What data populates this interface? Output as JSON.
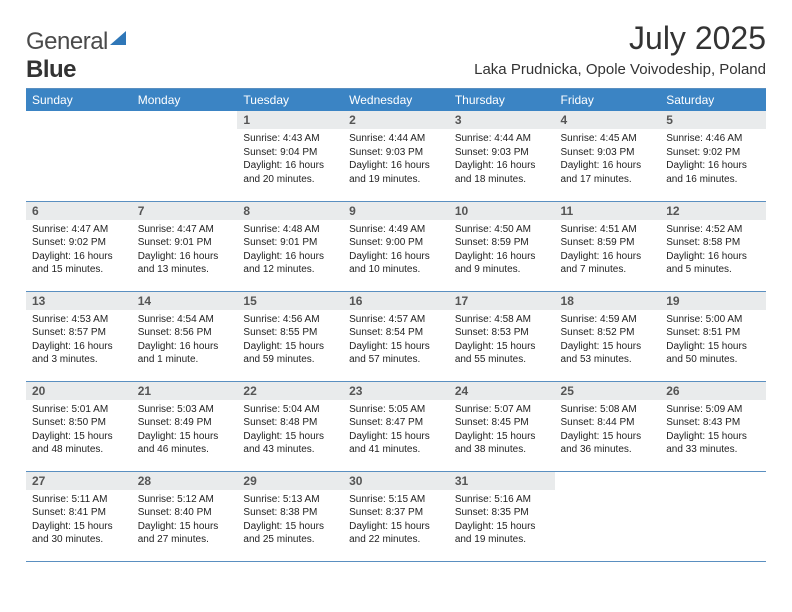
{
  "brand": {
    "part1": "General",
    "part2": "Blue"
  },
  "title": "July 2025",
  "location": "Laka Prudnicka, Opole Voivodeship, Poland",
  "colors": {
    "header_bg": "#3b84c4",
    "header_fg": "#ffffff",
    "daynum_bg": "#e9ebec",
    "rule": "#5a8fc0",
    "logo_accent": "#2f77b8"
  },
  "weekdays": [
    "Sunday",
    "Monday",
    "Tuesday",
    "Wednesday",
    "Thursday",
    "Friday",
    "Saturday"
  ],
  "weeks": [
    [
      {
        "n": "",
        "sr": "",
        "ss": "",
        "dl": ""
      },
      {
        "n": "",
        "sr": "",
        "ss": "",
        "dl": ""
      },
      {
        "n": "1",
        "sr": "Sunrise: 4:43 AM",
        "ss": "Sunset: 9:04 PM",
        "dl": "Daylight: 16 hours and 20 minutes."
      },
      {
        "n": "2",
        "sr": "Sunrise: 4:44 AM",
        "ss": "Sunset: 9:03 PM",
        "dl": "Daylight: 16 hours and 19 minutes."
      },
      {
        "n": "3",
        "sr": "Sunrise: 4:44 AM",
        "ss": "Sunset: 9:03 PM",
        "dl": "Daylight: 16 hours and 18 minutes."
      },
      {
        "n": "4",
        "sr": "Sunrise: 4:45 AM",
        "ss": "Sunset: 9:03 PM",
        "dl": "Daylight: 16 hours and 17 minutes."
      },
      {
        "n": "5",
        "sr": "Sunrise: 4:46 AM",
        "ss": "Sunset: 9:02 PM",
        "dl": "Daylight: 16 hours and 16 minutes."
      }
    ],
    [
      {
        "n": "6",
        "sr": "Sunrise: 4:47 AM",
        "ss": "Sunset: 9:02 PM",
        "dl": "Daylight: 16 hours and 15 minutes."
      },
      {
        "n": "7",
        "sr": "Sunrise: 4:47 AM",
        "ss": "Sunset: 9:01 PM",
        "dl": "Daylight: 16 hours and 13 minutes."
      },
      {
        "n": "8",
        "sr": "Sunrise: 4:48 AM",
        "ss": "Sunset: 9:01 PM",
        "dl": "Daylight: 16 hours and 12 minutes."
      },
      {
        "n": "9",
        "sr": "Sunrise: 4:49 AM",
        "ss": "Sunset: 9:00 PM",
        "dl": "Daylight: 16 hours and 10 minutes."
      },
      {
        "n": "10",
        "sr": "Sunrise: 4:50 AM",
        "ss": "Sunset: 8:59 PM",
        "dl": "Daylight: 16 hours and 9 minutes."
      },
      {
        "n": "11",
        "sr": "Sunrise: 4:51 AM",
        "ss": "Sunset: 8:59 PM",
        "dl": "Daylight: 16 hours and 7 minutes."
      },
      {
        "n": "12",
        "sr": "Sunrise: 4:52 AM",
        "ss": "Sunset: 8:58 PM",
        "dl": "Daylight: 16 hours and 5 minutes."
      }
    ],
    [
      {
        "n": "13",
        "sr": "Sunrise: 4:53 AM",
        "ss": "Sunset: 8:57 PM",
        "dl": "Daylight: 16 hours and 3 minutes."
      },
      {
        "n": "14",
        "sr": "Sunrise: 4:54 AM",
        "ss": "Sunset: 8:56 PM",
        "dl": "Daylight: 16 hours and 1 minute."
      },
      {
        "n": "15",
        "sr": "Sunrise: 4:56 AM",
        "ss": "Sunset: 8:55 PM",
        "dl": "Daylight: 15 hours and 59 minutes."
      },
      {
        "n": "16",
        "sr": "Sunrise: 4:57 AM",
        "ss": "Sunset: 8:54 PM",
        "dl": "Daylight: 15 hours and 57 minutes."
      },
      {
        "n": "17",
        "sr": "Sunrise: 4:58 AM",
        "ss": "Sunset: 8:53 PM",
        "dl": "Daylight: 15 hours and 55 minutes."
      },
      {
        "n": "18",
        "sr": "Sunrise: 4:59 AM",
        "ss": "Sunset: 8:52 PM",
        "dl": "Daylight: 15 hours and 53 minutes."
      },
      {
        "n": "19",
        "sr": "Sunrise: 5:00 AM",
        "ss": "Sunset: 8:51 PM",
        "dl": "Daylight: 15 hours and 50 minutes."
      }
    ],
    [
      {
        "n": "20",
        "sr": "Sunrise: 5:01 AM",
        "ss": "Sunset: 8:50 PM",
        "dl": "Daylight: 15 hours and 48 minutes."
      },
      {
        "n": "21",
        "sr": "Sunrise: 5:03 AM",
        "ss": "Sunset: 8:49 PM",
        "dl": "Daylight: 15 hours and 46 minutes."
      },
      {
        "n": "22",
        "sr": "Sunrise: 5:04 AM",
        "ss": "Sunset: 8:48 PM",
        "dl": "Daylight: 15 hours and 43 minutes."
      },
      {
        "n": "23",
        "sr": "Sunrise: 5:05 AM",
        "ss": "Sunset: 8:47 PM",
        "dl": "Daylight: 15 hours and 41 minutes."
      },
      {
        "n": "24",
        "sr": "Sunrise: 5:07 AM",
        "ss": "Sunset: 8:45 PM",
        "dl": "Daylight: 15 hours and 38 minutes."
      },
      {
        "n": "25",
        "sr": "Sunrise: 5:08 AM",
        "ss": "Sunset: 8:44 PM",
        "dl": "Daylight: 15 hours and 36 minutes."
      },
      {
        "n": "26",
        "sr": "Sunrise: 5:09 AM",
        "ss": "Sunset: 8:43 PM",
        "dl": "Daylight: 15 hours and 33 minutes."
      }
    ],
    [
      {
        "n": "27",
        "sr": "Sunrise: 5:11 AM",
        "ss": "Sunset: 8:41 PM",
        "dl": "Daylight: 15 hours and 30 minutes."
      },
      {
        "n": "28",
        "sr": "Sunrise: 5:12 AM",
        "ss": "Sunset: 8:40 PM",
        "dl": "Daylight: 15 hours and 27 minutes."
      },
      {
        "n": "29",
        "sr": "Sunrise: 5:13 AM",
        "ss": "Sunset: 8:38 PM",
        "dl": "Daylight: 15 hours and 25 minutes."
      },
      {
        "n": "30",
        "sr": "Sunrise: 5:15 AM",
        "ss": "Sunset: 8:37 PM",
        "dl": "Daylight: 15 hours and 22 minutes."
      },
      {
        "n": "31",
        "sr": "Sunrise: 5:16 AM",
        "ss": "Sunset: 8:35 PM",
        "dl": "Daylight: 15 hours and 19 minutes."
      },
      {
        "n": "",
        "sr": "",
        "ss": "",
        "dl": ""
      },
      {
        "n": "",
        "sr": "",
        "ss": "",
        "dl": ""
      }
    ]
  ]
}
